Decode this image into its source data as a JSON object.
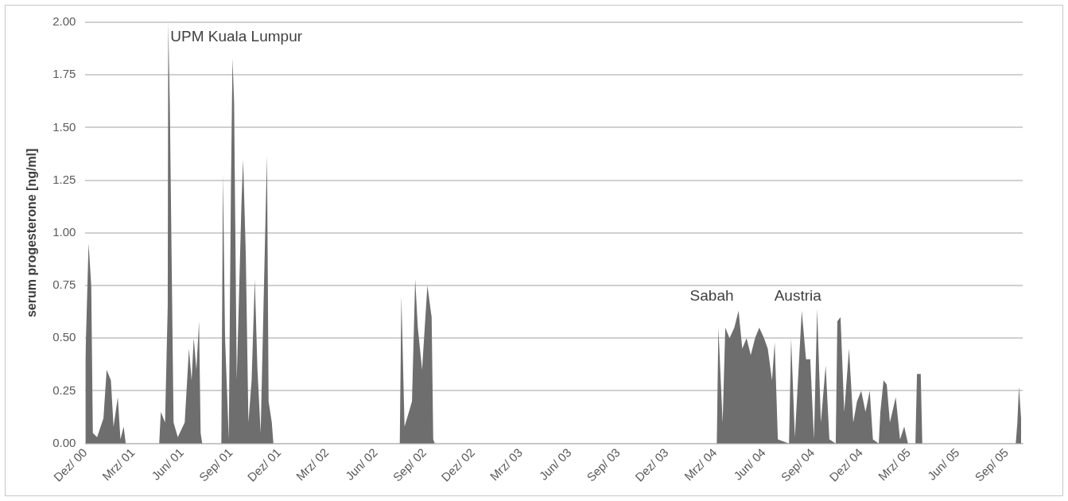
{
  "chart_data": {
    "type": "area",
    "ylabel": "serum progesterone [ng/ml]",
    "color": "#6e6e6e",
    "grid": "y",
    "legend": false,
    "xlim": [
      "2000-12-01",
      "2005-10-01"
    ],
    "xticks": [
      {
        "value": "2000-12",
        "label": "Dez/ 00"
      },
      {
        "value": "2001-03",
        "label": "Mrz/ 01"
      },
      {
        "value": "2001-06",
        "label": "Jun/ 01"
      },
      {
        "value": "2001-09",
        "label": "Sep/ 01"
      },
      {
        "value": "2001-12",
        "label": "Dez/ 01"
      },
      {
        "value": "2002-03",
        "label": "Mrz/ 02"
      },
      {
        "value": "2002-06",
        "label": "Jun/ 02"
      },
      {
        "value": "2002-09",
        "label": "Sep/ 02"
      },
      {
        "value": "2002-12",
        "label": "Dez/ 02"
      },
      {
        "value": "2003-03",
        "label": "Mrz/ 03"
      },
      {
        "value": "2003-06",
        "label": "Jun/ 03"
      },
      {
        "value": "2003-09",
        "label": "Sep/ 03"
      },
      {
        "value": "2003-12",
        "label": "Dez/ 03"
      },
      {
        "value": "2004-03",
        "label": "Mrz/ 04"
      },
      {
        "value": "2004-06",
        "label": "Jun/ 04"
      },
      {
        "value": "2004-09",
        "label": "Sep/ 04"
      },
      {
        "value": "2004-12",
        "label": "Dez/ 04"
      },
      {
        "value": "2005-03",
        "label": "Mrz/ 05"
      },
      {
        "value": "2005-06",
        "label": "Jun/ 05"
      },
      {
        "value": "2005-09",
        "label": "Sep/ 05"
      }
    ],
    "ylim": [
      0,
      2
    ],
    "yticks": [
      {
        "value": 0,
        "label": "0.00"
      },
      {
        "value": 0.25,
        "label": "0.25"
      },
      {
        "value": 0.5,
        "label": "0.50"
      },
      {
        "value": 0.75,
        "label": "0.75"
      },
      {
        "value": 1,
        "label": "1.00"
      },
      {
        "value": 1.25,
        "label": "1.25"
      },
      {
        "value": 1.5,
        "label": "1.50"
      },
      {
        "value": 1.75,
        "label": "1.75"
      },
      {
        "value": 2,
        "label": "2.00"
      }
    ],
    "x": [
      "2000-12-01",
      "2000-12-07",
      "2000-12-12",
      "2000-12-15",
      "2000-12-23",
      "2001-01-04",
      "2001-01-10",
      "2001-01-18",
      "2001-01-23",
      "2001-01-31",
      "2001-02-05",
      "2001-02-11",
      "2001-02-15",
      "2001-04-19",
      "2001-04-22",
      "2001-04-30",
      "2001-05-05",
      "2001-05-06",
      "2001-05-09",
      "2001-05-16",
      "2001-05-24",
      "2001-06-06",
      "2001-06-14",
      "2001-06-19",
      "2001-06-23",
      "2001-06-28",
      "2001-07-03",
      "2001-07-06",
      "2001-07-09",
      "2001-08-14",
      "2001-08-17",
      "2001-08-21",
      "2001-08-28",
      "2001-09-01",
      "2001-09-04",
      "2001-09-07",
      "2001-09-12",
      "2001-09-21",
      "2001-09-24",
      "2001-09-29",
      "2001-10-04",
      "2001-10-10",
      "2001-10-16",
      "2001-10-21",
      "2001-10-27",
      "2001-11-05",
      "2001-11-08",
      "2001-11-11",
      "2001-11-17",
      "2001-11-20",
      "2002-07-16",
      "2002-07-19",
      "2002-07-25",
      "2002-08-08",
      "2002-08-14",
      "2002-08-19",
      "2002-08-27",
      "2002-09-06",
      "2002-09-14",
      "2002-09-17",
      "2002-09-20",
      "2004-03-04",
      "2004-03-07",
      "2004-03-15",
      "2004-03-20",
      "2004-03-28",
      "2004-04-06",
      "2004-04-14",
      "2004-04-21",
      "2004-04-29",
      "2004-05-07",
      "2004-05-15",
      "2004-05-23",
      "2004-06-01",
      "2004-06-08",
      "2004-06-16",
      "2004-06-21",
      "2004-06-27",
      "2004-07-18",
      "2004-07-22",
      "2004-07-29",
      "2004-08-11",
      "2004-08-19",
      "2004-08-27",
      "2004-09-03",
      "2004-09-09",
      "2004-09-16",
      "2004-09-25",
      "2004-10-02",
      "2004-10-14",
      "2004-10-17",
      "2004-10-23",
      "2004-10-30",
      "2004-11-08",
      "2004-11-16",
      "2004-11-23",
      "2004-12-01",
      "2004-12-09",
      "2004-12-17",
      "2004-12-23",
      "2005-01-03",
      "2005-01-06",
      "2005-01-12",
      "2005-01-18",
      "2005-01-24",
      "2005-02-04",
      "2005-02-12",
      "2005-02-20",
      "2005-02-27",
      "2005-03-13",
      "2005-03-16",
      "2005-03-23",
      "2005-03-26",
      "2005-09-18",
      "2005-09-21",
      "2005-09-24",
      "2005-09-28"
    ],
    "values": [
      0.4,
      0.95,
      0.75,
      0.05,
      0.03,
      0.12,
      0.35,
      0.3,
      0.08,
      0.22,
      0.02,
      0.08,
      0,
      0,
      0.15,
      0.1,
      0.65,
      2.0,
      1.6,
      0.1,
      0.03,
      0.1,
      0.45,
      0.3,
      0.5,
      0.35,
      0.58,
      0.05,
      0,
      0,
      1.28,
      0.5,
      0.02,
      1.2,
      1.83,
      1.62,
      0.3,
      1.15,
      1.35,
      0.9,
      0.1,
      0.3,
      0.78,
      0.35,
      0.05,
      1.05,
      1.37,
      0.2,
      0.1,
      0,
      0,
      0.7,
      0.08,
      0.2,
      0.78,
      0.55,
      0.35,
      0.75,
      0.6,
      0.02,
      0,
      0,
      0.55,
      0.1,
      0.55,
      0.5,
      0.55,
      0.63,
      0.45,
      0.5,
      0.42,
      0.5,
      0.55,
      0.5,
      0.45,
      0.3,
      0.48,
      0.02,
      0,
      0.5,
      0.03,
      0.63,
      0.4,
      0.4,
      0.02,
      0.64,
      0.1,
      0.37,
      0.02,
      0,
      0.58,
      0.6,
      0.15,
      0.45,
      0.1,
      0.2,
      0.25,
      0.15,
      0.25,
      0.02,
      0,
      0.15,
      0.3,
      0.28,
      0.1,
      0.22,
      0.02,
      0.08,
      0,
      0,
      0.33,
      0.33,
      0,
      0,
      0.1,
      0.27,
      0.12
    ],
    "annotations": [
      {
        "text": "UPM Kuala Lumpur",
        "x": "2001-05-10",
        "y": 1.93
      },
      "Sabah",
      "Austria"
    ]
  }
}
